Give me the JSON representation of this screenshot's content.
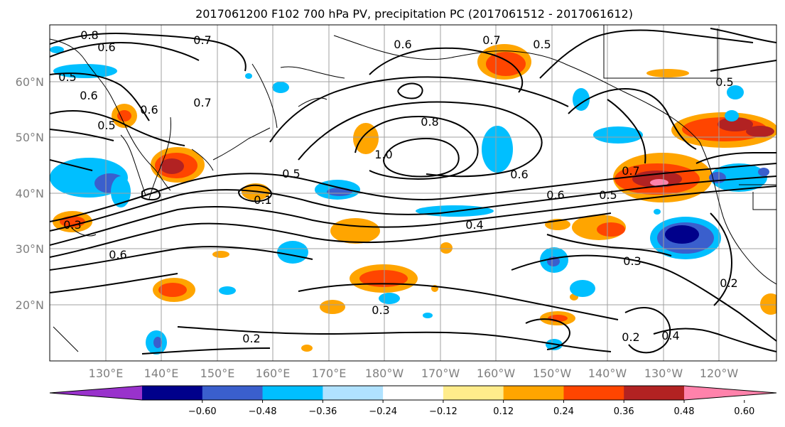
{
  "title": "2017061200 F102 700 hPa PV, precipitation PC (2017061512 - 2017061612)",
  "lon_labels": [
    "130°E",
    "140°E",
    "150°E",
    "160°E",
    "170°E",
    "180°W",
    "170°W",
    "160°W",
    "150°W",
    "140°W",
    "130°W",
    "120°W"
  ],
  "lat_labels": [
    "60°N",
    "50°N",
    "40°N",
    "30°N",
    "20°N"
  ],
  "colorbar": {
    "ticks": [
      "−0.60",
      "−0.48",
      "−0.36",
      "−0.24",
      "−0.12",
      "0.12",
      "0.24",
      "0.36",
      "0.48",
      "0.60"
    ],
    "colors": [
      "#9932cc",
      "#00008b",
      "#3a5fcd",
      "#00bfff",
      "#b0e2ff",
      "#ffffff",
      "#ffec8b",
      "#ffa500",
      "#ff4500",
      "#b22222",
      "#ff82ab"
    ]
  },
  "contour_labels": {
    "l1": "0.8",
    "l2": "0.6",
    "l3": "0.7",
    "l4": "0.5",
    "l5": "0.6",
    "l6": "0.5",
    "l7": "0.6",
    "l8": "0.7",
    "l9": "0.5",
    "l10": "0.7",
    "l11": "0.6",
    "l12": "0.5",
    "l13": "0.8",
    "l14": "1.0",
    "l15": "0.7",
    "l16": "0.6",
    "l17": "0.5",
    "l18": "0.6",
    "l19": "0.5",
    "l20": "0.4",
    "l21": "0.1",
    "l22": "0.3",
    "l23": "0.6",
    "l24": "0.3",
    "l25": "0.2",
    "l26": "0.3",
    "l27": "0.2",
    "l28": "0.4",
    "l29": "0.2"
  }
}
